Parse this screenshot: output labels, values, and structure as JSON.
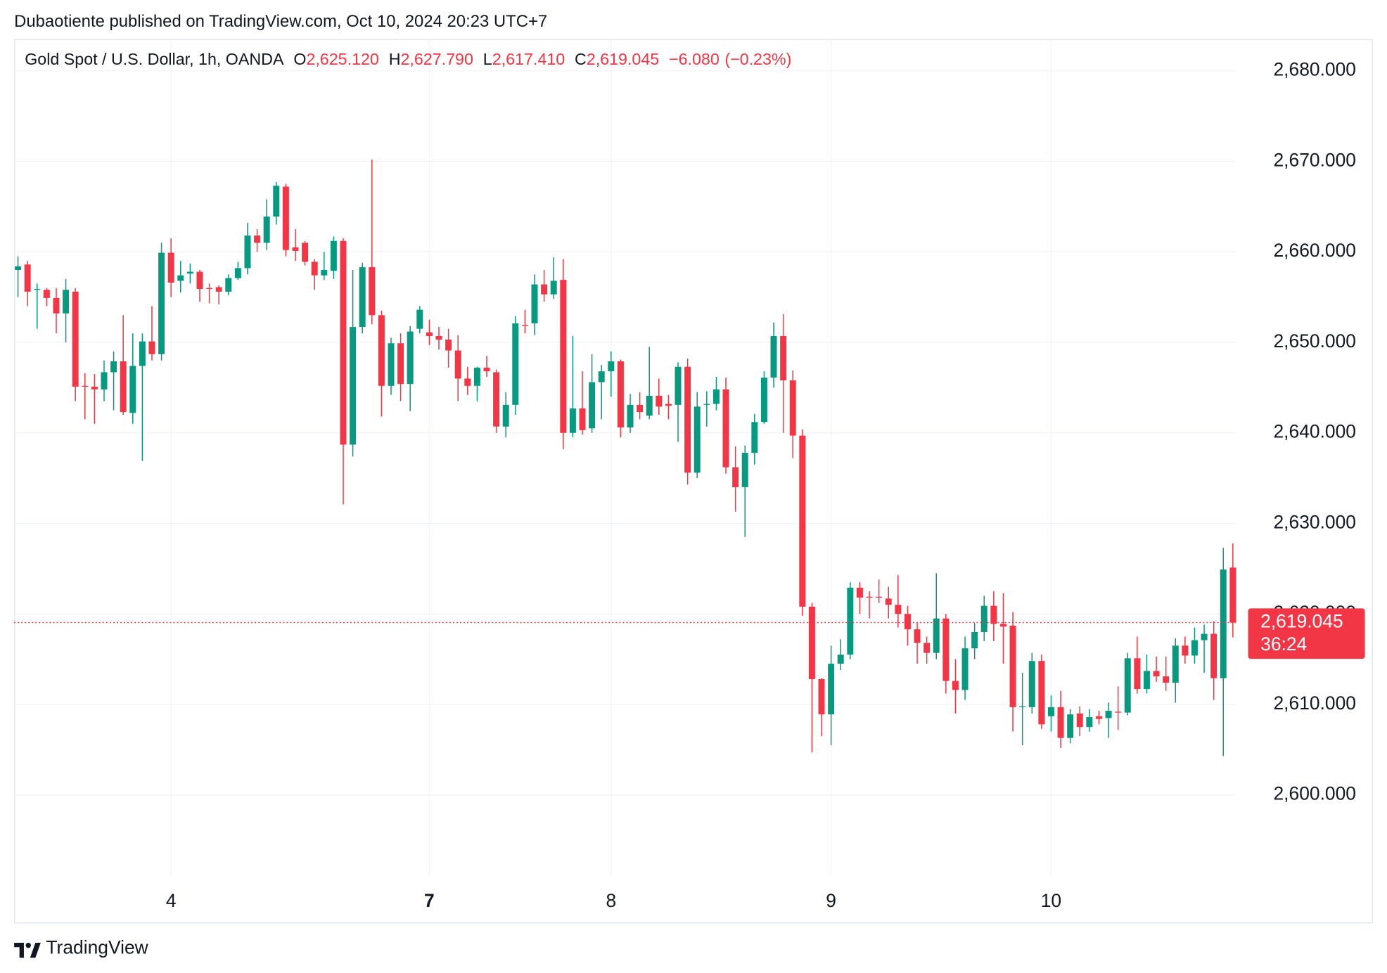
{
  "header": {
    "byline": "Dubaotiente published on TradingView.com, Oct 10, 2024 20:23 UTC+7"
  },
  "footer": {
    "brand": "TradingView"
  },
  "chart_data": {
    "type": "candlestick",
    "legend": {
      "symbol": "Gold Spot / U.S. Dollar, 1h, OANDA",
      "fields": [
        {
          "label": "O",
          "value": {
            "value": 2625.12,
            "label": "2,625.120"
          }
        },
        {
          "label": "H",
          "value": {
            "value": 2627.79,
            "label": "2,627.790"
          }
        },
        {
          "label": "L",
          "value": {
            "value": 2617.41,
            "label": "2,617.410"
          }
        },
        {
          "label": "C",
          "value": {
            "value": 2619.045,
            "label": "2,619.045"
          }
        }
      ],
      "change": {
        "value": -6.08,
        "label": "−6.080"
      },
      "change_pct": {
        "value": -0.23,
        "label": "(−0.23%)"
      }
    },
    "up_color": "#089981",
    "down_color": "#f23645",
    "open": [
      2658.0,
      2658.6,
      2655.8,
      2655.8,
      2654.9,
      2653.2,
      2655.6,
      2645.2,
      2645.1,
      2644.8,
      2646.7,
      2647.9,
      2642.2,
      2647.4,
      2650.1,
      2648.7,
      2659.9,
      2656.8,
      2657.6,
      2657.8,
      2656.0,
      2656.1,
      2655.6,
      2657.1,
      2658.2,
      2661.8,
      2661.0,
      2663.9,
      2667.2,
      2660.5,
      2661.0,
      2658.9,
      2657.4,
      2657.9,
      2661.2,
      2638.7,
      2651.7,
      2658.3,
      2653.0,
      2645.2,
      2649.9,
      2645.4,
      2651.5,
      2651.1,
      2650.7,
      2650.3,
      2649.1,
      2646.0,
      2645.2,
      2647.2,
      2646.7,
      2640.7,
      2643.1,
      2651.9,
      2652.1,
      2656.4,
      2655.3,
      2656.9,
      2640.0,
      2642.7,
      2640.5,
      2645.6,
      2646.8,
      2647.9,
      2640.6,
      2643.1,
      2641.9,
      2644.1,
      2643.2,
      2643.1,
      2647.3,
      2635.6,
      2643.1,
      2643.2,
      2644.8,
      2636.2,
      2634.0,
      2637.8,
      2641.2,
      2646.1,
      2650.7,
      2645.8,
      2639.7,
      2620.8,
      2612.8,
      2608.9,
      2614.5,
      2615.5,
      2622.9,
      2621.9,
      2621.9,
      2621.7,
      2621.0,
      2620.0,
      2618.3,
      2616.8,
      2615.7,
      2619.5,
      2612.6,
      2611.6,
      2616.2,
      2618.0,
      2620.9,
      2618.9,
      2618.7,
      2609.7,
      2609.7,
      2614.8,
      2608.7,
      2609.7,
      2606.3,
      2609.0,
      2607.5,
      2608.7,
      2608.5,
      2609.2,
      2609.1,
      2615.1,
      2611.7,
      2613.7,
      2613.1,
      2612.4,
      2616.5,
      2615.4,
      2617.1,
      2617.8,
      2612.9,
      2625.12
    ],
    "high": [
      2659.5,
      2659,
      2656.5,
      2656,
      2656,
      2657,
      2656,
      2646.6,
      2646.5,
      2648,
      2649,
      2653,
      2651,
      2651,
      2654,
      2661,
      2661.5,
      2659,
      2658.7,
      2658,
      2656.5,
      2656.3,
      2657.5,
      2658.9,
      2663.2,
      2662.5,
      2665.8,
      2667.7,
      2667.5,
      2662.5,
      2661.2,
      2659.2,
      2660,
      2661.7,
      2661.5,
      2658,
      2658.8,
      2670.2,
      2653.5,
      2650.5,
      2651,
      2651.8,
      2654,
      2652.5,
      2651.7,
      2651.5,
      2650.8,
      2647.3,
      2647.3,
      2648.5,
      2647,
      2644.5,
      2652.9,
      2653.6,
      2657.5,
      2658,
      2659.4,
      2659.2,
      2650.7,
      2646.8,
      2648.7,
      2647.5,
      2649,
      2648.1,
      2644.3,
      2644.5,
      2649.5,
      2646,
      2644.2,
      2647.8,
      2648.2,
      2644.5,
      2644.6,
      2646.2,
      2646.1,
      2638.5,
      2638.6,
      2642.1,
      2646.8,
      2652.2,
      2653.1,
      2646.9,
      2640.4,
      2621.2,
      2612.9,
      2616.5,
      2617.2,
      2623.5,
      2623.5,
      2622.5,
      2623.8,
      2623,
      2624.3,
      2620.9,
      2619,
      2617.5,
      2624.5,
      2620,
      2615,
      2617.5,
      2619,
      2622,
      2622.5,
      2622.3,
      2620.2,
      2613.5,
      2615.7,
      2615.5,
      2611,
      2611.5,
      2609.5,
      2609.8,
      2609.5,
      2609.3,
      2610.2,
      2612,
      2615.7,
      2617.5,
      2615.5,
      2615.3,
      2615.3,
      2617.3,
      2617.5,
      2618.5,
      2618.8,
      2619.2,
      2627.3,
      2627.79
    ],
    "low": [
      2655,
      2654,
      2651.5,
      2654,
      2651,
      2650,
      2643.5,
      2641.5,
      2641,
      2643.5,
      2642.5,
      2642,
      2641,
      2636.9,
      2648,
      2648,
      2655,
      2655.5,
      2656.5,
      2654.5,
      2654.3,
      2654.2,
      2655.2,
      2656.9,
      2657.5,
      2660,
      2660.2,
      2663,
      2659.5,
      2659,
      2658.5,
      2655.8,
      2656.9,
      2657,
      2632.1,
      2637.4,
      2651,
      2652,
      2641.8,
      2644.2,
      2643.5,
      2642.4,
      2651,
      2649.7,
      2649.2,
      2647.2,
      2643.5,
      2644.2,
      2643.5,
      2646.2,
      2640,
      2639.5,
      2642,
      2651,
      2650.8,
      2654.5,
      2654.8,
      2638.2,
      2639.5,
      2639.8,
      2640,
      2641.5,
      2644,
      2639.5,
      2640,
      2641.5,
      2641.5,
      2642,
      2641.5,
      2639,
      2634.3,
      2635,
      2640.7,
      2642.5,
      2635.5,
      2631.3,
      2628.5,
      2636.5,
      2641,
      2645,
      2640,
      2637.2,
      2619.8,
      2604.7,
      2606.5,
      2605.5,
      2613.8,
      2615,
      2620,
      2619.5,
      2621.2,
      2619.5,
      2618.5,
      2616.5,
      2614.5,
      2614.5,
      2615,
      2611.2,
      2609,
      2610.5,
      2615,
      2617,
      2617,
      2614.5,
      2607,
      2605.5,
      2609,
      2607.3,
      2607,
      2605.2,
      2605.7,
      2606.5,
      2607,
      2607.8,
      2606.3,
      2607.2,
      2608.8,
      2611.2,
      2611.2,
      2612.5,
      2611.5,
      2610.2,
      2614.5,
      2614.5,
      2613.5,
      2610.5,
      2604.3,
      2617.41
    ],
    "close": [
      2658.4,
      2655.6,
      2655.9,
      2654.9,
      2653.2,
      2655.8,
      2645.1,
      2645.1,
      2644.8,
      2646.7,
      2647.9,
      2642.3,
      2647.4,
      2650.1,
      2648.7,
      2659.9,
      2656.6,
      2657.4,
      2657.8,
      2655.9,
      2655.9,
      2655.6,
      2657.1,
      2658.2,
      2661.8,
      2661.0,
      2663.9,
      2667.3,
      2660.2,
      2660.1,
      2658.9,
      2657.4,
      2658.0,
      2661.2,
      2638.7,
      2651.7,
      2658.3,
      2653.0,
      2645.2,
      2649.9,
      2645.4,
      2651.2,
      2653.6,
      2650.7,
      2650.3,
      2649.1,
      2646.0,
      2645.2,
      2647.2,
      2646.8,
      2640.7,
      2643.1,
      2652.1,
      2651.8,
      2656.4,
      2655.3,
      2656.8,
      2640.0,
      2642.7,
      2640.3,
      2645.6,
      2646.8,
      2647.9,
      2640.6,
      2643.1,
      2642.3,
      2644.1,
      2642.9,
      2643.0,
      2647.3,
      2635.6,
      2642.9,
      2643.2,
      2644.8,
      2636.2,
      2634.0,
      2637.8,
      2641.2,
      2646.1,
      2650.7,
      2645.8,
      2639.7,
      2620.8,
      2612.8,
      2608.9,
      2614.5,
      2615.5,
      2622.9,
      2621.8,
      2621.8,
      2621.8,
      2621.0,
      2620.0,
      2618.3,
      2616.8,
      2615.7,
      2619.5,
      2612.6,
      2611.6,
      2616.2,
      2618.0,
      2620.9,
      2618.9,
      2618.6,
      2609.7,
      2609.8,
      2614.8,
      2607.8,
      2609.7,
      2606.3,
      2608.9,
      2607.5,
      2608.6,
      2608.4,
      2609.3,
      2609.1,
      2615.1,
      2611.7,
      2613.7,
      2613.1,
      2612.4,
      2616.5,
      2615.4,
      2617.1,
      2617.8,
      2612.9,
      2624.9,
      2619.045
    ],
    "xlim": [
      -0.4,
      127.3
    ],
    "xticks": [
      {
        "value": 16,
        "label": "4"
      },
      {
        "value": 43,
        "label": "7"
      },
      {
        "value": 62,
        "label": "8"
      },
      {
        "value": 85,
        "label": "9"
      },
      {
        "value": 108,
        "label": "10"
      }
    ],
    "ylim": [
      2591.1,
      2683.5
    ],
    "yticks": [
      {
        "value": 2600,
        "label": "2,600.000"
      },
      {
        "value": 2610,
        "label": "2,610.000"
      },
      {
        "value": 2620,
        "label": "2,620.000"
      },
      {
        "value": 2630,
        "label": "2,630.000"
      },
      {
        "value": 2640,
        "label": "2,640.000"
      },
      {
        "value": 2650,
        "label": "2,650.000"
      },
      {
        "value": 2660,
        "label": "2,660.000"
      },
      {
        "value": 2670,
        "label": "2,670.000"
      },
      {
        "value": 2680,
        "label": "2,680.000"
      }
    ],
    "grid": true,
    "last_price": {
      "value": 2619.045,
      "label": "2,619.045"
    },
    "countdown": "36:24"
  }
}
